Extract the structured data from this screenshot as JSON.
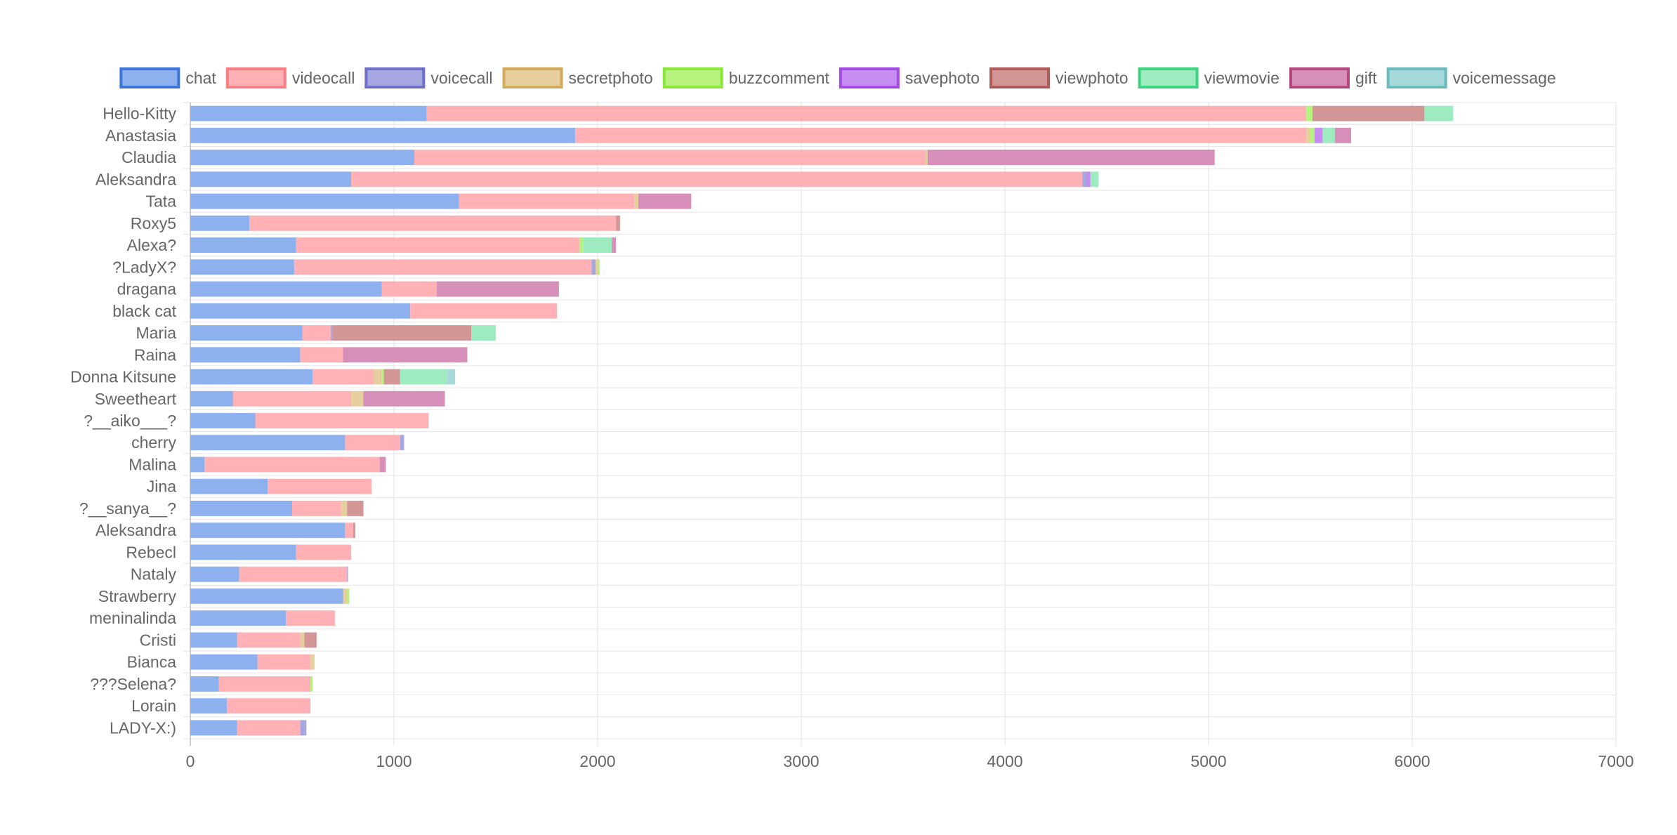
{
  "chart_data": {
    "type": "bar",
    "orientation": "horizontal",
    "stacked": true,
    "grid": true,
    "legend_position": "top",
    "xlim": [
      0,
      7000
    ],
    "x_ticks": [
      "0",
      "1000",
      "2000",
      "3000",
      "4000",
      "5000",
      "6000",
      "7000"
    ],
    "categories": [
      "Hello-Kitty",
      "Anastasia",
      "Claudia",
      "Aleksandra",
      "Tata",
      "Roxy5",
      "Alexa?",
      "?LadyX?",
      "dragana",
      "black cat",
      "Maria",
      "Raina",
      "Donna Kitsune",
      "Sweetheart",
      "?__aiko___?",
      "cherry",
      "Malina",
      "Jina",
      "?__sanya__?",
      "Aleksandra",
      "Rebecl",
      "Nataly",
      "Strawberry",
      "meninalinda",
      "Cristi",
      "Bianca",
      "???Selena?",
      "Lorain",
      "LADY-X:)"
    ],
    "series": [
      {
        "name": "chat",
        "color": "#8DB0EE",
        "border": "#3B74DB",
        "values": [
          1160,
          1890,
          1100,
          790,
          1320,
          290,
          520,
          510,
          940,
          1080,
          550,
          540,
          600,
          210,
          320,
          760,
          70,
          380,
          500,
          760,
          520,
          240,
          750,
          470,
          230,
          330,
          140,
          180,
          230
        ]
      },
      {
        "name": "videocall",
        "color": "#FFB1B5",
        "border": "#F97D84",
        "values": [
          4320,
          3590,
          2510,
          3590,
          860,
          1800,
          1390,
          1460,
          270,
          720,
          140,
          210,
          300,
          580,
          850,
          270,
          860,
          510,
          240,
          40,
          270,
          530,
          0,
          240,
          310,
          260,
          450,
          410,
          310
        ]
      },
      {
        "name": "voicecall",
        "color": "#A6A6E0",
        "border": "#6F6FC7",
        "values": [
          0,
          0,
          0,
          20,
          0,
          0,
          0,
          20,
          0,
          0,
          10,
          0,
          0,
          0,
          0,
          20,
          0,
          0,
          0,
          0,
          0,
          5,
          0,
          0,
          0,
          0,
          0,
          0,
          30
        ]
      },
      {
        "name": "secretphoto",
        "color": "#E6CE9E",
        "border": "#D3A95A",
        "values": [
          0,
          20,
          10,
          0,
          20,
          0,
          0,
          10,
          0,
          0,
          0,
          0,
          40,
          60,
          0,
          0,
          0,
          0,
          30,
          0,
          0,
          0,
          20,
          0,
          20,
          20,
          0,
          0,
          0
        ]
      },
      {
        "name": "buzzcomment",
        "color": "#B5F27E",
        "border": "#8BE83A",
        "values": [
          30,
          20,
          0,
          0,
          0,
          0,
          20,
          10,
          0,
          0,
          0,
          0,
          10,
          0,
          0,
          0,
          0,
          0,
          0,
          0,
          0,
          0,
          10,
          0,
          0,
          0,
          10,
          0,
          0
        ]
      },
      {
        "name": "savephoto",
        "color": "#C78CF0",
        "border": "#A24AE3",
        "values": [
          0,
          40,
          0,
          20,
          0,
          0,
          0,
          0,
          0,
          0,
          0,
          0,
          0,
          0,
          0,
          0,
          0,
          0,
          0,
          0,
          0,
          0,
          0,
          0,
          0,
          0,
          0,
          0,
          0
        ]
      },
      {
        "name": "viewphoto",
        "color": "#D39696",
        "border": "#B05A5A",
        "values": [
          550,
          0,
          0,
          0,
          0,
          20,
          0,
          0,
          0,
          0,
          680,
          0,
          80,
          0,
          0,
          0,
          0,
          0,
          80,
          10,
          0,
          0,
          0,
          0,
          60,
          0,
          0,
          0,
          0
        ]
      },
      {
        "name": "viewmovie",
        "color": "#9CECC0",
        "border": "#3ED47F",
        "values": [
          140,
          60,
          0,
          40,
          0,
          0,
          140,
          0,
          0,
          0,
          120,
          0,
          230,
          0,
          0,
          0,
          0,
          0,
          0,
          0,
          0,
          0,
          0,
          0,
          0,
          0,
          0,
          0,
          0
        ]
      },
      {
        "name": "gift",
        "color": "#D58FB8",
        "border": "#B5467F",
        "values": [
          0,
          80,
          1410,
          0,
          260,
          0,
          20,
          0,
          600,
          0,
          0,
          610,
          0,
          400,
          0,
          0,
          30,
          0,
          0,
          0,
          0,
          0,
          0,
          0,
          0,
          0,
          0,
          0,
          0
        ]
      },
      {
        "name": "voicemessage",
        "color": "#A6DADA",
        "border": "#6ABBBB",
        "values": [
          0,
          0,
          0,
          0,
          0,
          0,
          0,
          0,
          0,
          0,
          0,
          0,
          40,
          0,
          0,
          0,
          0,
          0,
          0,
          0,
          0,
          0,
          0,
          0,
          0,
          0,
          0,
          0,
          0
        ]
      }
    ]
  }
}
